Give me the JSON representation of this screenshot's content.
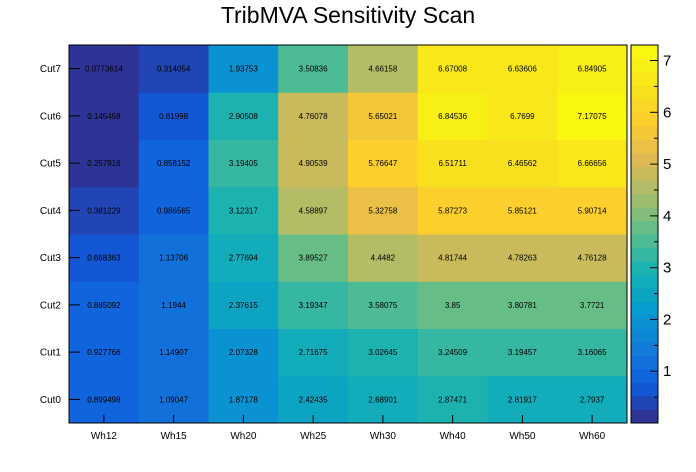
{
  "chart_data": {
    "type": "heatmap",
    "title": "TribMVA Sensitivity Scan",
    "xlabel": "",
    "ylabel": "",
    "x_categories": [
      "Wh12",
      "Wh15",
      "Wh20",
      "Wh25",
      "Wh30",
      "Wh40",
      "Wh50",
      "Wh60"
    ],
    "y_categories": [
      "Cut0",
      "Cut1",
      "Cut2",
      "Cut3",
      "Cut4",
      "Cut5",
      "Cut6",
      "Cut7"
    ],
    "values": [
      [
        0.899498,
        1.09047,
        1.87178,
        2.42435,
        2.68901,
        2.87471,
        2.81917,
        2.7937
      ],
      [
        0.927766,
        1.14907,
        2.07328,
        2.71675,
        3.02645,
        3.24509,
        3.19457,
        3.16065
      ],
      [
        0.885092,
        1.1944,
        2.37615,
        3.19347,
        3.58075,
        3.85,
        3.80781,
        3.7721
      ],
      [
        0.668363,
        1.13706,
        2.77694,
        3.89527,
        4.4482,
        4.81744,
        4.78263,
        4.76128
      ],
      [
        0.381229,
        0.986565,
        3.12317,
        4.58897,
        5.32758,
        5.87273,
        5.85121,
        5.90714
      ],
      [
        0.257916,
        0.858152,
        3.19405,
        4.90539,
        5.76647,
        6.51711,
        6.46562,
        6.66656
      ],
      [
        0.145458,
        0.61998,
        2.90508,
        4.76078,
        5.65021,
        6.84536,
        6.7699,
        7.17075
      ],
      [
        0.0773614,
        0.314054,
        1.93753,
        3.50836,
        4.66158,
        6.67008,
        6.63606,
        6.84905
      ]
    ],
    "value_labels": [
      [
        "0.899498",
        "1.09047",
        "1.87178",
        "2.42435",
        "2.68901",
        "2.87471",
        "2.81917",
        "2.7937"
      ],
      [
        "0.927766",
        "1.14907",
        "2.07328",
        "2.71675",
        "3.02645",
        "3.24509",
        "3.19457",
        "3.16065"
      ],
      [
        "0.885092",
        "1.1944",
        "2.37615",
        "3.19347",
        "3.58075",
        "3.85",
        "3.80781",
        "3.7721"
      ],
      [
        "0.668363",
        "1.13706",
        "2.77694",
        "3.89527",
        "4.4482",
        "4.81744",
        "4.78263",
        "4.76128"
      ],
      [
        "0.381229",
        "0.986565",
        "3.12317",
        "4.58897",
        "5.32758",
        "5.87273",
        "5.85121",
        "5.90714"
      ],
      [
        "0.257916",
        "0.858152",
        "3.19405",
        "4.90539",
        "5.76647",
        "6.51711",
        "6.46562",
        "6.66656"
      ],
      [
        "0.145458",
        "0.61998",
        "2.90508",
        "4.76078",
        "5.65021",
        "6.84536",
        "6.7699",
        "7.17075"
      ],
      [
        "0.0773614",
        "0.314054",
        "1.93753",
        "3.50836",
        "4.66158",
        "6.67008",
        "6.63606",
        "6.84905"
      ]
    ],
    "zlim": [
      0,
      7.3
    ],
    "z_ticks": [
      "1",
      "2",
      "3",
      "4",
      "5",
      "6",
      "7"
    ],
    "colormap": "parula",
    "colorbar": "right",
    "grid": false,
    "legend": "none"
  }
}
